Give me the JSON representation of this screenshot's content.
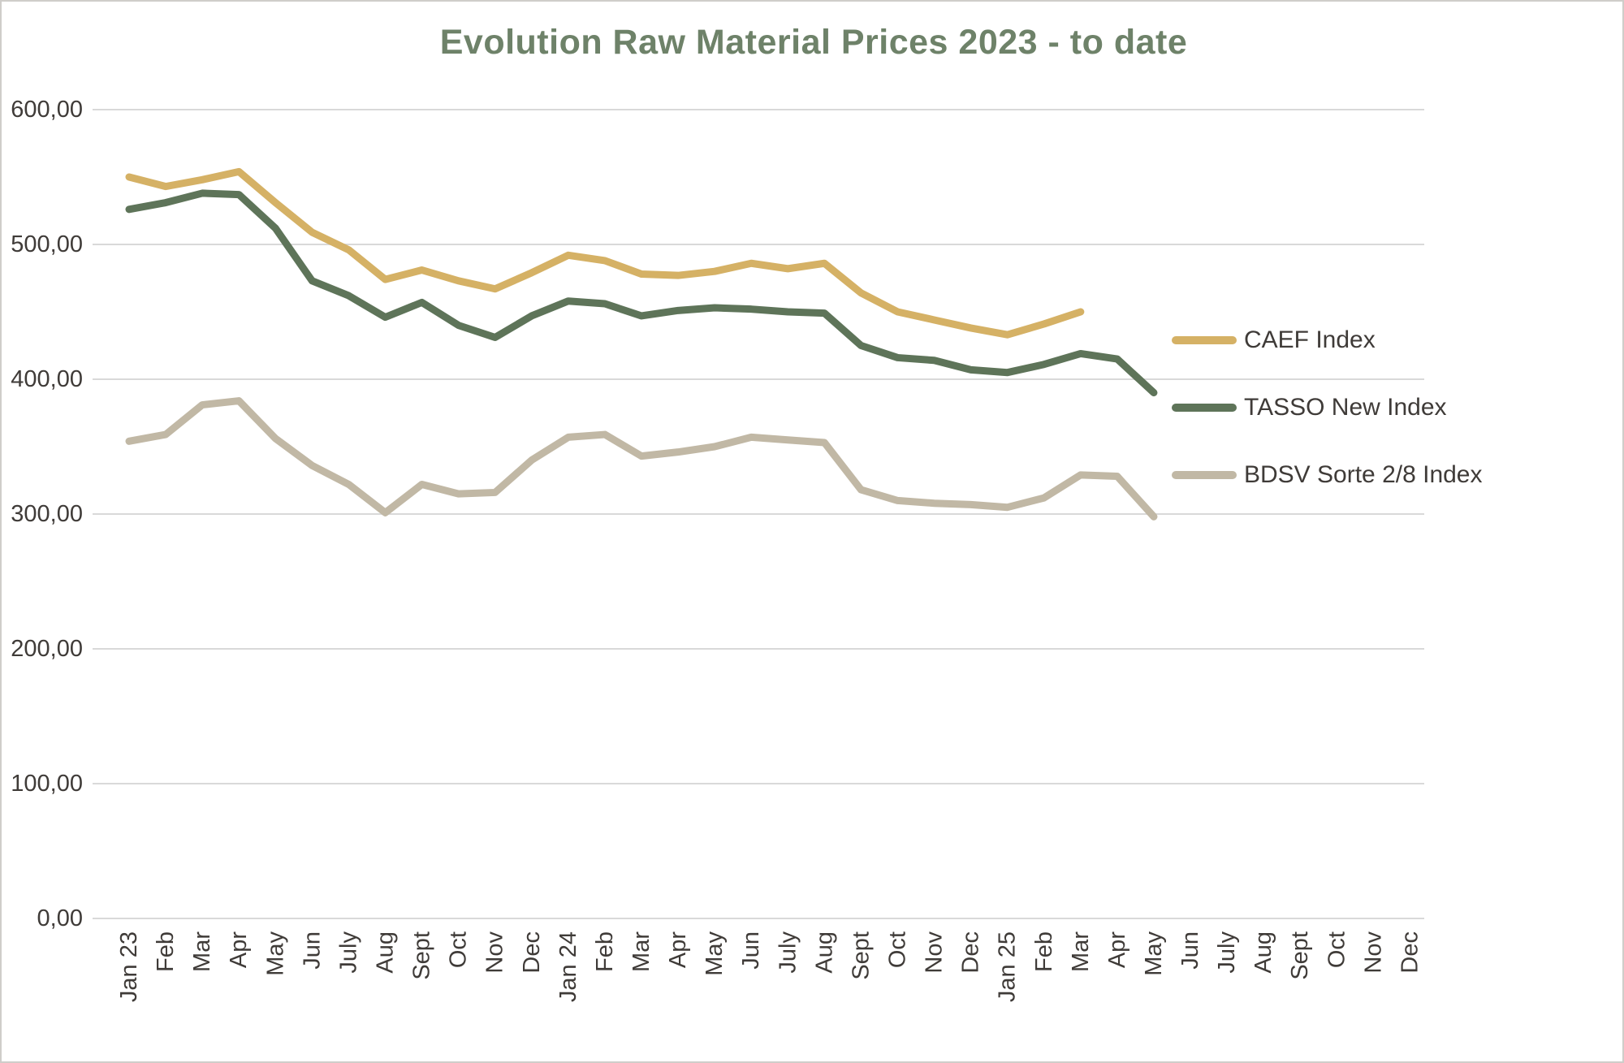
{
  "chart_data": {
    "type": "line",
    "title": "Evolution Raw Material Prices 2023 - to date",
    "title_color": "#6E8269",
    "axis_text_color": "#3F3B38",
    "grid_color": "#D9D9D9",
    "legend_position": "right",
    "categories": [
      "Jan 23",
      "Feb",
      "Mar",
      "Apr",
      "May",
      "Jun",
      "July",
      "Aug",
      "Sept",
      "Oct",
      "Nov",
      "Dec",
      "Jan 24",
      "Feb",
      "Mar",
      "Apr",
      "May",
      "Jun",
      "July",
      "Aug",
      "Sept",
      "Oct",
      "Nov",
      "Dec",
      "Jan 25",
      "Feb",
      "Mar",
      "Apr",
      "May",
      "Jun",
      "July",
      "Aug",
      "Sept",
      "Oct",
      "Nov",
      "Dec"
    ],
    "y_axis": {
      "min": 0,
      "max": 600,
      "step": 100,
      "tick_labels": [
        "0,00",
        "100,00",
        "200,00",
        "300,00",
        "400,00",
        "500,00",
        "600,00"
      ]
    },
    "series": [
      {
        "name": "CAEF Index",
        "slug": "caef-index",
        "color": "#D5B165",
        "values": [
          550,
          543,
          548,
          554,
          531,
          509,
          496,
          474,
          481,
          473,
          467,
          479,
          492,
          488,
          478,
          477,
          480,
          486,
          482,
          486,
          464,
          450,
          444,
          438,
          433,
          441,
          450,
          null,
          null,
          null,
          null,
          null,
          null,
          null,
          null,
          null
        ]
      },
      {
        "name": "TASSO New Index",
        "slug": "tasso-new-index",
        "color": "#5E7459",
        "values": [
          526,
          531,
          538,
          537,
          512,
          473,
          462,
          446,
          457,
          440,
          431,
          447,
          458,
          456,
          447,
          451,
          453,
          452,
          450,
          449,
          425,
          416,
          414,
          407,
          405,
          411,
          419,
          415,
          390,
          null,
          null,
          null,
          null,
          null,
          null,
          null
        ]
      },
      {
        "name": "BDSV Sorte 2/8 Index",
        "slug": "bdsv-sorte-2-8-index",
        "color": "#C1B8A5",
        "values": [
          354,
          359,
          381,
          384,
          356,
          336,
          322,
          301,
          322,
          315,
          316,
          340,
          357,
          359,
          343,
          346,
          350,
          357,
          355,
          353,
          318,
          310,
          308,
          307,
          305,
          312,
          329,
          328,
          298,
          null,
          null,
          null,
          null,
          null,
          null,
          null
        ]
      }
    ]
  }
}
